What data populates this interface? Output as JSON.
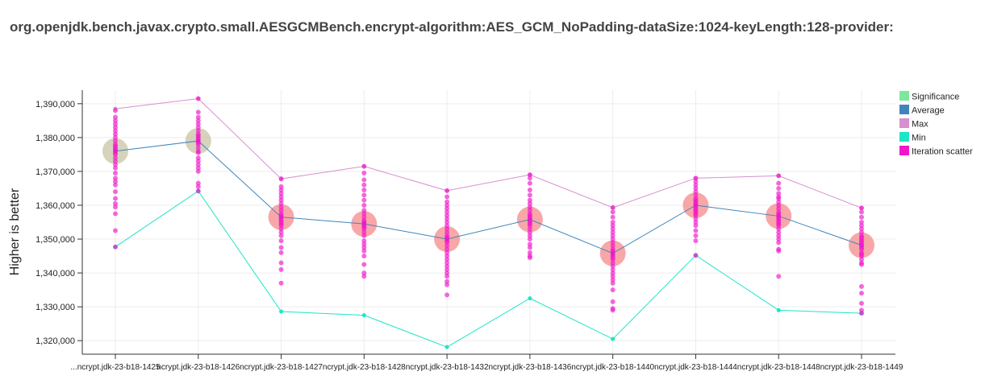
{
  "chart_data": {
    "type": "line",
    "title": "org.openjdk.bench.javax.crypto.small.AESGCMBench.encrypt-algorithm:AES_GCM_NoPadding-dataSize:1024-keyLength:128-provider:",
    "xlabel": "",
    "ylabel": "Higher is better",
    "ylim": [
      1316000,
      1394000
    ],
    "yticks": [
      1320000,
      1330000,
      1340000,
      1350000,
      1360000,
      1370000,
      1380000,
      1390000
    ],
    "ytick_labels": [
      "1,320,000",
      "1,330,000",
      "1,340,000",
      "1,350,000",
      "1,360,000",
      "1,370,000",
      "1,380,000",
      "1,390,000"
    ],
    "grid": true,
    "legend_position": "top-right",
    "categories": [
      "...ncrypt.jdk-23-b18-1425",
      "ncrypt.jdk-23-b18-1426",
      "ncrypt.jdk-23-b18-1427",
      "ncrypt.jdk-23-b18-1428",
      "ncrypt.jdk-23-b18-1432",
      "ncrypt.jdk-23-b18-1436",
      "ncrypt.jdk-23-b18-1440",
      "ncrypt.jdk-23-b18-1444",
      "ncrypt.jdk-23-b18-1448",
      "ncrypt.jdk-23-b18-1449"
    ],
    "series": [
      {
        "name": "Significance",
        "color": "#7be89e",
        "values": [
          1376000,
          1379000,
          1356500,
          1354500,
          1350000,
          1355800,
          1345800,
          1360000,
          1356800,
          1348200
        ],
        "circle_colors": [
          "#c9c3a4",
          "#c9c3a4",
          "#f5898c",
          "#f5898c",
          "#f5898c",
          "#f5898c",
          "#f5898c",
          "#f5898c",
          "#f5898c",
          "#f5898c"
        ]
      },
      {
        "name": "Average",
        "color": "#3f85bb",
        "values": [
          1376000,
          1379000,
          1356500,
          1354500,
          1350000,
          1355800,
          1345800,
          1360000,
          1356800,
          1348200
        ]
      },
      {
        "name": "Max",
        "color": "#d78fcf",
        "values": [
          1388500,
          1391500,
          1367800,
          1371500,
          1364300,
          1369000,
          1359300,
          1368000,
          1368700,
          1359200
        ]
      },
      {
        "name": "Min",
        "color": "#1de5c8",
        "values": [
          1347700,
          1364200,
          1328600,
          1327500,
          1318100,
          1332500,
          1320500,
          1345200,
          1329000,
          1328100
        ]
      },
      {
        "name": "Iteration scatter",
        "color": "#f216c9",
        "points": [
          [
            1388000,
            1386000,
            1385000,
            1384000,
            1383000,
            1382000,
            1381000,
            1380000,
            1379000,
            1378000,
            1377500,
            1377000,
            1376500,
            1376000,
            1375500,
            1375000,
            1374000,
            1373000,
            1372000,
            1371000,
            1369500,
            1368000,
            1367000,
            1366000,
            1364000,
            1362000,
            1360500,
            1359500,
            1357500,
            1352500,
            1347700
          ],
          [
            1391500,
            1387500,
            1386000,
            1385000,
            1384000,
            1383000,
            1382000,
            1381000,
            1380500,
            1380000,
            1379500,
            1379000,
            1378500,
            1378000,
            1377000,
            1376000,
            1375500,
            1374000,
            1373000,
            1372000,
            1371000,
            1370000,
            1366500,
            1365500,
            1364200
          ],
          [
            1367800,
            1365500,
            1364500,
            1363500,
            1362500,
            1361500,
            1360500,
            1359500,
            1358500,
            1357500,
            1357000,
            1356500,
            1356000,
            1355500,
            1355000,
            1354500,
            1354000,
            1353000,
            1352000,
            1351000,
            1349500,
            1347500,
            1346000,
            1343000,
            1341000,
            1337000
          ],
          [
            1371500,
            1369500,
            1367500,
            1366000,
            1364500,
            1363000,
            1361500,
            1360000,
            1358500,
            1357500,
            1356500,
            1355500,
            1355000,
            1354500,
            1354000,
            1353500,
            1353000,
            1352000,
            1351000,
            1349500,
            1348500,
            1347500,
            1346500,
            1345000,
            1342500,
            1340000,
            1339000
          ],
          [
            1364300,
            1362500,
            1361000,
            1360000,
            1359000,
            1358000,
            1357000,
            1356000,
            1355000,
            1354000,
            1353000,
            1352000,
            1351000,
            1350500,
            1350000,
            1349500,
            1349000,
            1348000,
            1347000,
            1346000,
            1345000,
            1344000,
            1343000,
            1342000,
            1341000,
            1340000,
            1339000,
            1337500,
            1336500,
            1333500
          ],
          [
            1369000,
            1368000,
            1366500,
            1364500,
            1363000,
            1361500,
            1360500,
            1359500,
            1358500,
            1357500,
            1357000,
            1356500,
            1356000,
            1355500,
            1355000,
            1354500,
            1354000,
            1353000,
            1352000,
            1351000,
            1350000,
            1348500,
            1347500,
            1346000,
            1345000,
            1344500
          ],
          [
            1359300,
            1358000,
            1356500,
            1355000,
            1354000,
            1353000,
            1352000,
            1351000,
            1350000,
            1349000,
            1348000,
            1347000,
            1346500,
            1346000,
            1345500,
            1345000,
            1344500,
            1344000,
            1343000,
            1342000,
            1341000,
            1340000,
            1339000,
            1338000,
            1337000,
            1335000,
            1331500,
            1329500,
            1329000
          ],
          [
            1368000,
            1367000,
            1366000,
            1365000,
            1364000,
            1363000,
            1362000,
            1361500,
            1361000,
            1360500,
            1360000,
            1359500,
            1359000,
            1358500,
            1358000,
            1357500,
            1357000,
            1356000,
            1355000,
            1354000,
            1352500,
            1351000,
            1349500,
            1345200
          ],
          [
            1368700,
            1366500,
            1365000,
            1363500,
            1362500,
            1362000,
            1361000,
            1360000,
            1359000,
            1358000,
            1357500,
            1357000,
            1356500,
            1356000,
            1355500,
            1355000,
            1354500,
            1354000,
            1353000,
            1352000,
            1351000,
            1350000,
            1349000,
            1347000,
            1346500,
            1339000
          ],
          [
            1359200,
            1358000,
            1356500,
            1355000,
            1354000,
            1353000,
            1352000,
            1351000,
            1350500,
            1350000,
            1349500,
            1349000,
            1348500,
            1348000,
            1347500,
            1347000,
            1346000,
            1345500,
            1345000,
            1344000,
            1343000,
            1342500,
            1336000,
            1334000,
            1331000,
            1329000,
            1328100
          ]
        ]
      }
    ]
  }
}
